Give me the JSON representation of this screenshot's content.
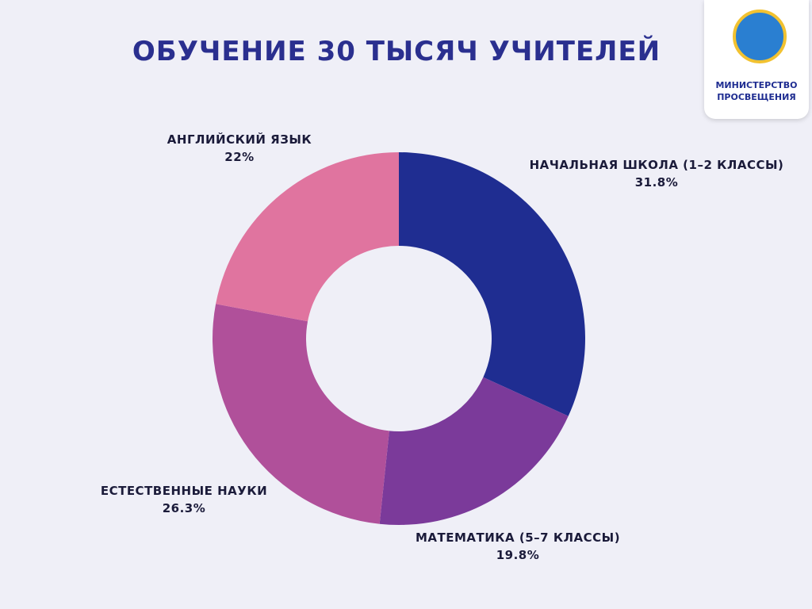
{
  "chart_data": {
    "type": "pie",
    "title": "ОБУЧЕНИЕ 30 ТЫСЯЧ УЧИТЕЛЕЙ",
    "categories": [
      "НАЧАЛЬНАЯ ШКОЛА (1–2 КЛАССЫ)",
      "МАТЕМАТИКА (5–7 КЛАССЫ)",
      "ЕСТЕСТВЕННЫЕ НАУКИ",
      "АНГЛИЙСКИЙ ЯЗЫК"
    ],
    "values": [
      31.8,
      19.8,
      26.3,
      22
    ],
    "value_labels": [
      "31.8%",
      "19.8%",
      "26.3%",
      "22%"
    ],
    "colors": [
      "#1f2d91",
      "#7b3a9a",
      "#b0509a",
      "#e0749f"
    ],
    "donut": true
  },
  "logo": {
    "text": "МИНИСТЕРСТВО ПРОСВЕЩЕНИЯ"
  }
}
